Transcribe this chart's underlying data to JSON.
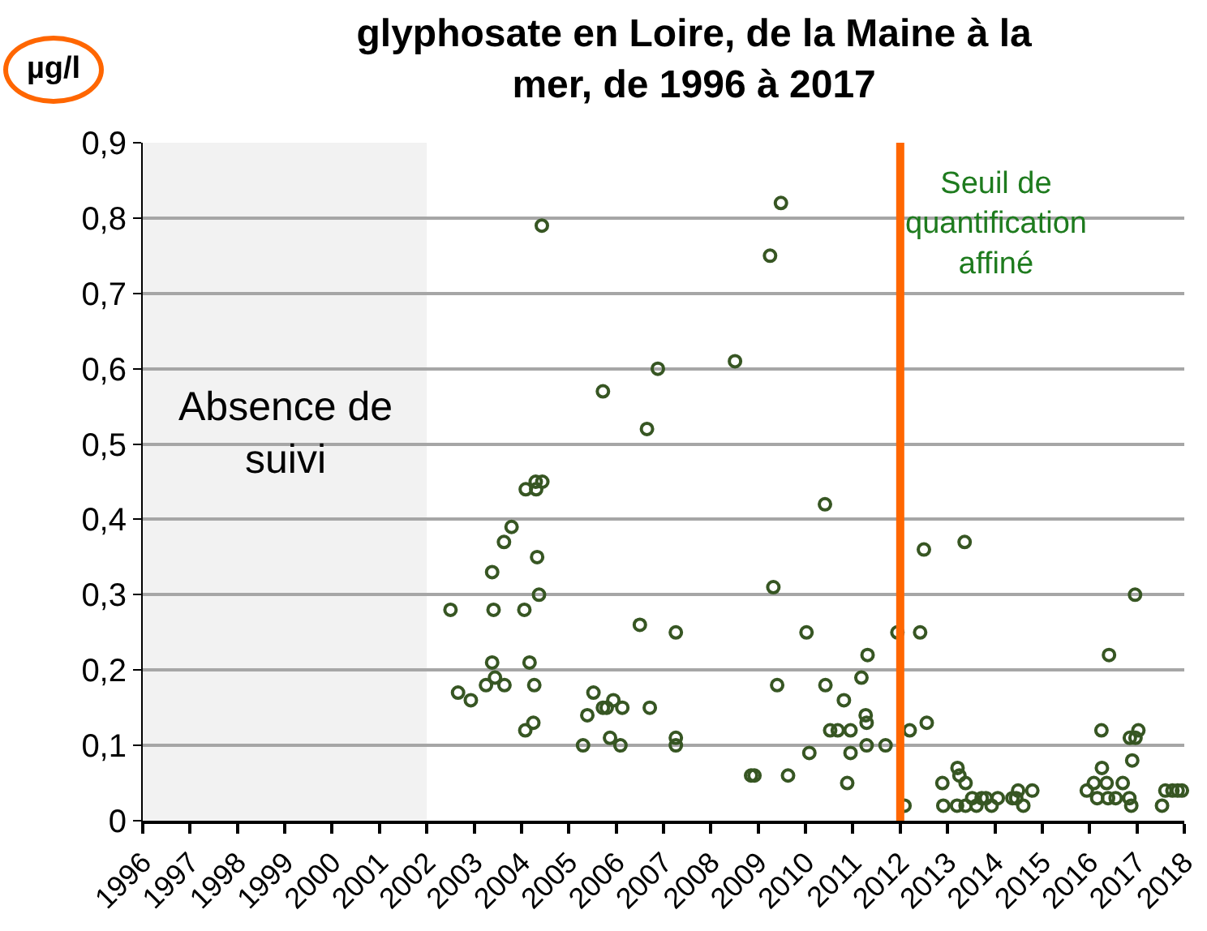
{
  "chart_data": {
    "type": "scatter",
    "title": "glyphosate en Loire, de la Maine à la mer, de 1996 à 2017",
    "ylabel": "µg/l",
    "x": [
      2002.5,
      2002.66,
      2002.93,
      2003.38,
      2003.41,
      2003.38,
      2003.44,
      2003.25,
      2003.64,
      2003.63,
      2003.79,
      2004.06,
      2004.17,
      2004.27,
      2004.08,
      2004.25,
      2004.09,
      2004.3,
      2004.31,
      2004.44,
      2004.33,
      2004.37,
      2004.43,
      2005.3,
      2005.39,
      2005.52,
      2005.72,
      2005.8,
      2005.94,
      2006.13,
      2005.87,
      2006.09,
      2005.72,
      2006.65,
      2006.88,
      2006.5,
      2006.71,
      2007.26,
      2007.26,
      2007.26,
      2008.51,
      2009.25,
      2009.48,
      2008.85,
      2008.92,
      2009.63,
      2009.32,
      2009.4,
      2010.02,
      2010.08,
      2010.41,
      2010.42,
      2010.81,
      2010.52,
      2010.68,
      2010.95,
      2010.95,
      2010.88,
      2011.18,
      2011.31,
      2011.27,
      2011.29,
      2011.29,
      2011.69,
      2011.94,
      2012.09,
      2012.42,
      2012.2,
      2012.5,
      2012.56,
      2013.36,
      2012.89,
      2012.91,
      2013.21,
      2013.25,
      2013.38,
      2013.2,
      2013.38,
      2013.52,
      2013.61,
      2013.72,
      2013.81,
      2013.93,
      2014.06,
      2014.37,
      2014.45,
      2014.49,
      2014.6,
      2014.79,
      2015.94,
      2016.09,
      2016.26,
      2016.25,
      2016.41,
      2016.36,
      2016.16,
      2016.39,
      2016.55,
      2016.7,
      2016.84,
      2016.88,
      2016.9,
      2016.85,
      2016.97,
      2017.03,
      2016.96,
      2017.53,
      2017.6,
      2017.75,
      2017.86,
      2017.95
    ],
    "series": [
      {
        "color": "#375623",
        "values": [
          0.28,
          0.17,
          0.16,
          0.33,
          0.28,
          0.21,
          0.19,
          0.18,
          0.18,
          0.37,
          0.39,
          0.28,
          0.21,
          0.18,
          0.12,
          0.13,
          0.44,
          0.45,
          0.44,
          0.45,
          0.35,
          0.3,
          0.79,
          0.1,
          0.14,
          0.17,
          0.15,
          0.15,
          0.16,
          0.15,
          0.11,
          0.1,
          0.57,
          0.52,
          0.6,
          0.26,
          0.15,
          0.25,
          0.11,
          0.1,
          0.61,
          0.75,
          0.82,
          0.06,
          0.06,
          0.06,
          0.31,
          0.18,
          0.25,
          0.09,
          0.42,
          0.18,
          0.16,
          0.12,
          0.12,
          0.12,
          0.09,
          0.05,
          0.19,
          0.22,
          0.14,
          0.13,
          0.1,
          0.1,
          0.25,
          0.02,
          0.25,
          0.12,
          0.36,
          0.13,
          0.37,
          0.05,
          0.02,
          0.07,
          0.06,
          0.05,
          0.02,
          0.02,
          0.03,
          0.02,
          0.03,
          0.03,
          0.02,
          0.03,
          0.03,
          0.03,
          0.04,
          0.02,
          0.04,
          0.04,
          0.05,
          0.07,
          0.12,
          0.22,
          0.05,
          0.03,
          0.03,
          0.03,
          0.05,
          0.03,
          0.02,
          0.08,
          0.11,
          0.11,
          0.12,
          0.3,
          0.02,
          0.04,
          0.04,
          0.04,
          0.04
        ]
      }
    ],
    "xlim": [
      1996,
      2018
    ],
    "xticks": [
      1996,
      1997,
      1998,
      1999,
      2000,
      2001,
      2002,
      2003,
      2004,
      2005,
      2006,
      2007,
      2008,
      2009,
      2010,
      2011,
      2012,
      2013,
      2014,
      2015,
      2016,
      2017,
      2018
    ],
    "ylim": [
      0,
      0.9
    ],
    "yticks": [
      0,
      {
        "value": 0.1,
        "label": "0,1"
      },
      {
        "value": 0.2,
        "label": "0,2"
      },
      {
        "value": 0.3,
        "label": "0,3"
      },
      {
        "value": 0.4,
        "label": "0,4"
      },
      {
        "value": 0.5,
        "label": "0,5"
      },
      {
        "value": 0.6,
        "label": "0,6"
      },
      {
        "value": 0.7,
        "label": "0,7"
      },
      {
        "value": 0.8,
        "label": "0,8"
      },
      {
        "value": 0.9,
        "label": "0,9"
      }
    ],
    "grid": "y",
    "marker": "circle",
    "bands": [
      {
        "axis": "x",
        "from": 1996,
        "to": 2002,
        "label": "Absence de suivi",
        "color": "#f2f2f2"
      }
    ],
    "ref_lines": [
      {
        "axis": "x",
        "value": 2012,
        "label": "Seuil de quantification affiné",
        "color": "#ff6600"
      }
    ]
  }
}
